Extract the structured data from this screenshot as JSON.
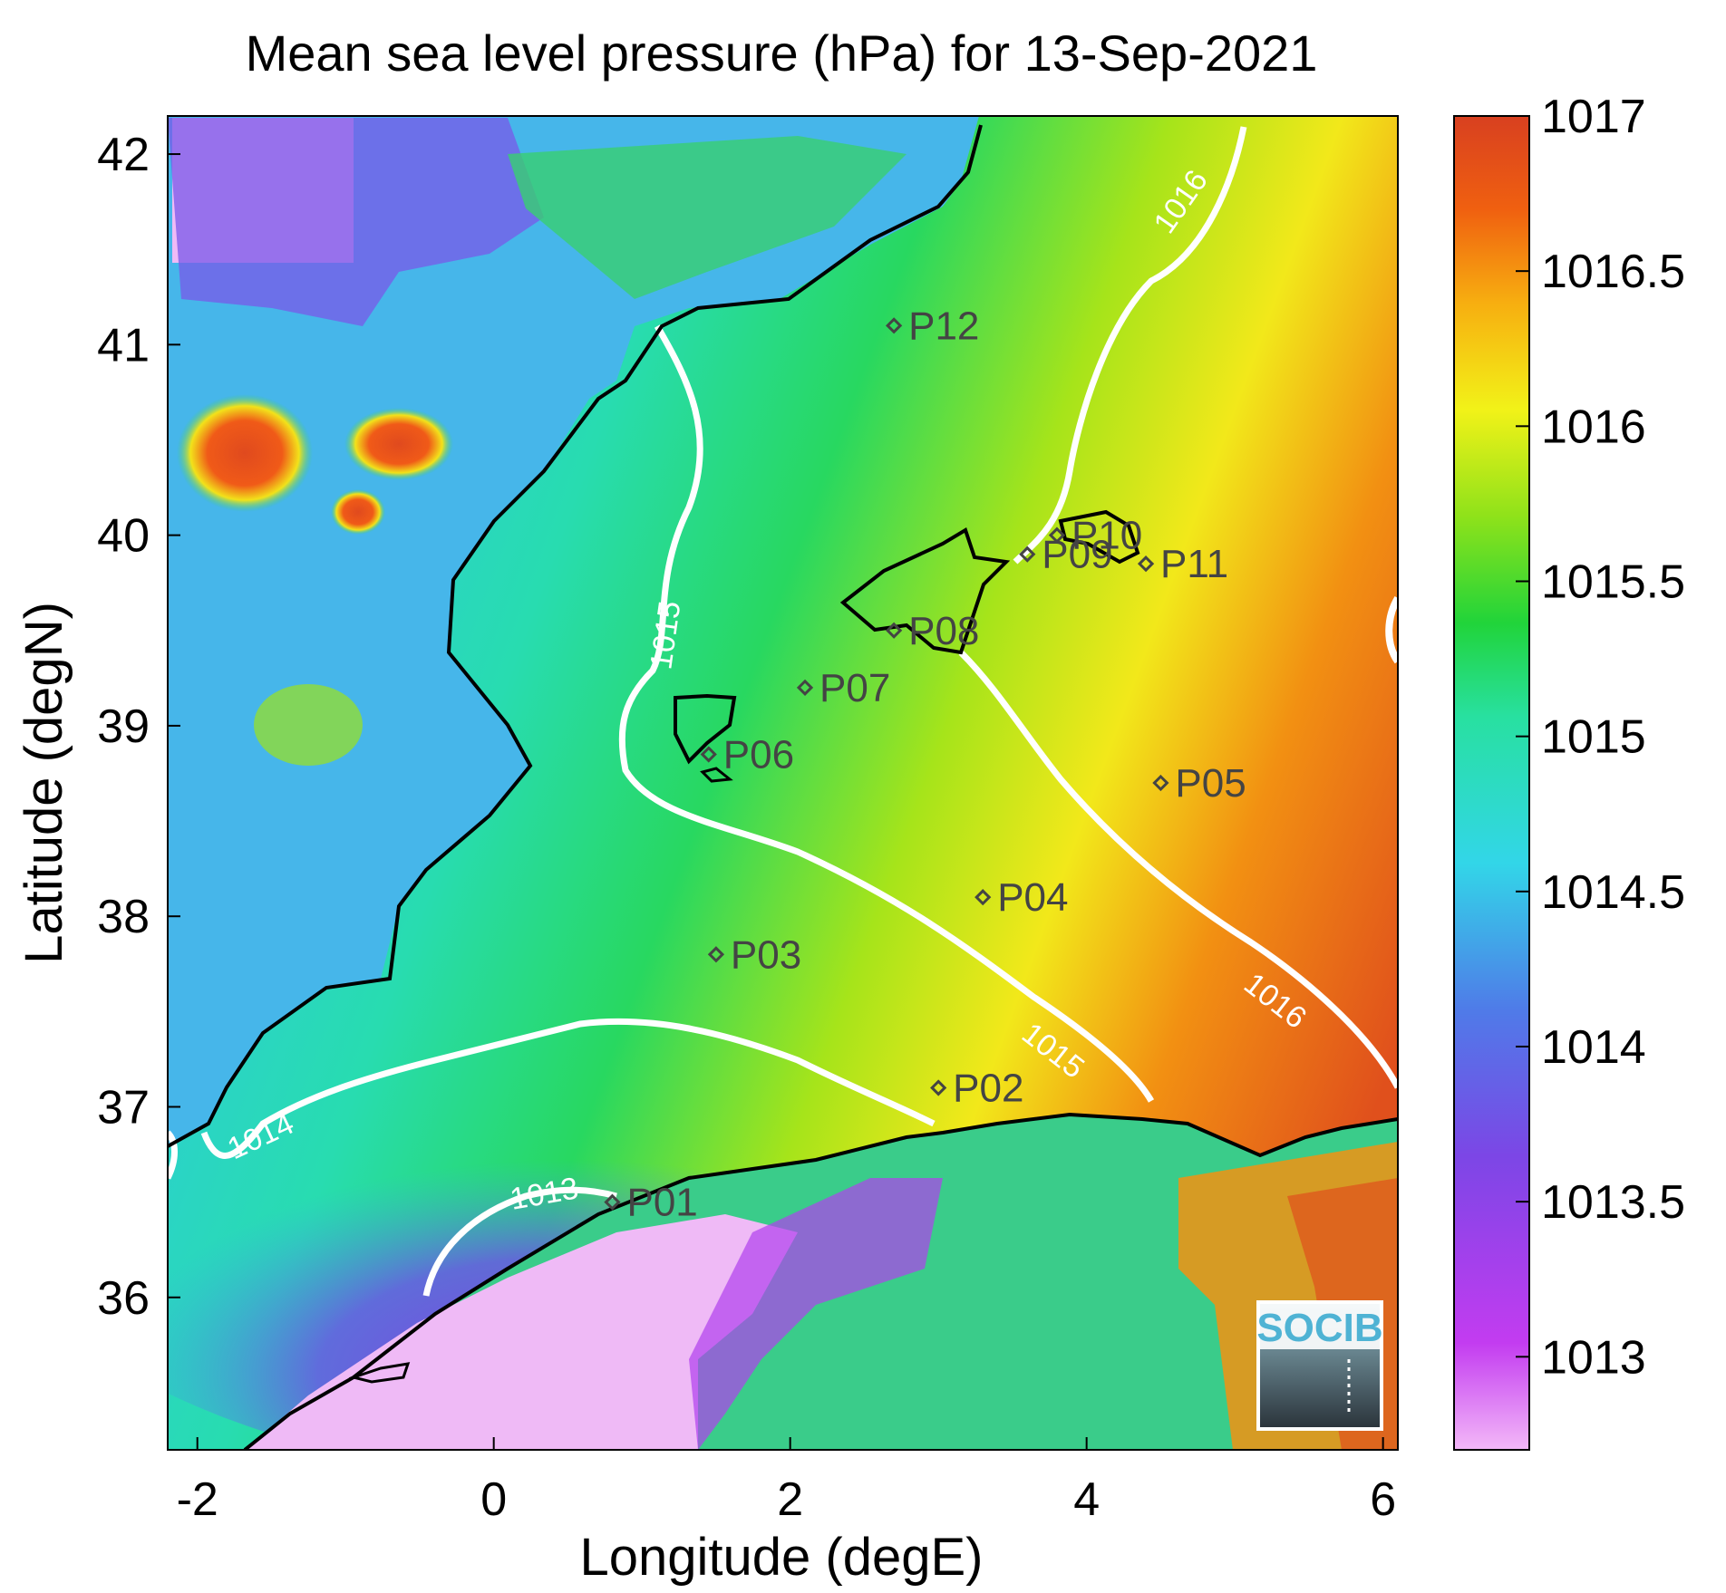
{
  "title": "Mean sea level pressure (hPa) for 13-Sep-2021",
  "xlabel": "Longitude (degE)",
  "ylabel": "Latitude (degN)",
  "x_ticks": [
    "-2",
    "0",
    "2",
    "4",
    "6"
  ],
  "y_ticks": [
    "36",
    "37",
    "38",
    "39",
    "40",
    "41",
    "42"
  ],
  "colorbar_ticks": [
    "1013",
    "1013.5",
    "1014",
    "1014.5",
    "1015",
    "1015.5",
    "1016",
    "1016.5",
    "1017"
  ],
  "colors": {
    "land_high": "#e04a1e",
    "sea_low": "#8a3fe0",
    "contour": "#ffffff",
    "coastline": "#000000",
    "station": "#444444"
  },
  "chart_data": {
    "type": "heatmap",
    "title": "Mean sea level pressure (hPa) for 13-Sep-2021",
    "xlabel": "Longitude (degE)",
    "ylabel": "Latitude (degN)",
    "xlim": [
      -2.2,
      6.1
    ],
    "ylim": [
      35.2,
      42.2
    ],
    "clim": [
      1012.7,
      1017
    ],
    "colormap": [
      "#f3b8f8",
      "#c33cf0",
      "#7c46e6",
      "#4f7be8",
      "#32d6e8",
      "#28e0a0",
      "#21d43a",
      "#8fe21a",
      "#f2f218",
      "#f7ae10",
      "#f06010",
      "#d84020"
    ],
    "contour_levels": [
      "1014",
      "1015",
      "1016",
      "1013"
    ],
    "stations": [
      {
        "id": "P01",
        "lon": 0.8,
        "lat": 36.5
      },
      {
        "id": "P02",
        "lon": 3.0,
        "lat": 37.1
      },
      {
        "id": "P03",
        "lon": 1.5,
        "lat": 37.8
      },
      {
        "id": "P04",
        "lon": 3.3,
        "lat": 38.1
      },
      {
        "id": "P05",
        "lon": 4.5,
        "lat": 38.7
      },
      {
        "id": "P06",
        "lon": 1.45,
        "lat": 38.85
      },
      {
        "id": "P07",
        "lon": 2.1,
        "lat": 39.2
      },
      {
        "id": "P08",
        "lon": 2.7,
        "lat": 39.5
      },
      {
        "id": "P09",
        "lon": 3.6,
        "lat": 39.9
      },
      {
        "id": "P10",
        "lon": 3.8,
        "lat": 40.0
      },
      {
        "id": "P11",
        "lon": 4.4,
        "lat": 39.85
      },
      {
        "id": "P12",
        "lon": 2.7,
        "lat": 41.1
      }
    ]
  },
  "logo": {
    "text": "SOCIB"
  }
}
